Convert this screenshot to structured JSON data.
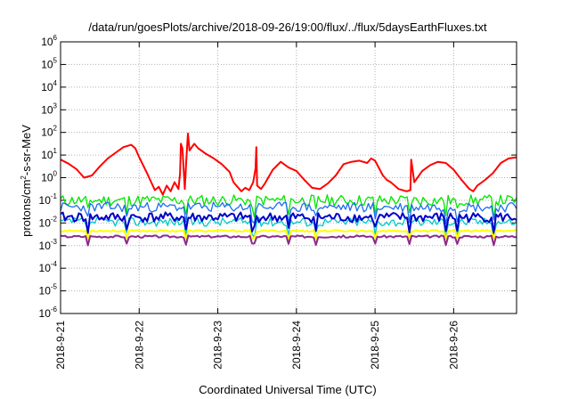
{
  "chart_data": {
    "type": "line",
    "title": "/data/run/goesPlots/archive/2018-09-26/19:00/flux/../flux/5daysEarthFluxes.txt",
    "xlabel": "Coordinated Universal Time (UTC)",
    "ylabel": {
      "base": "protons/cm",
      "sup": "2",
      "rest": "-s-sr-MeV"
    },
    "xlim": [
      0,
      5.8
    ],
    "xlim_note": "days after 2018-09-21 00:00 UTC",
    "x_ticks": [
      {
        "v": 0,
        "label": "2018-9-21"
      },
      {
        "v": 1,
        "label": "2018-9-22"
      },
      {
        "v": 2,
        "label": "2018-9-23"
      },
      {
        "v": 3,
        "label": "2018-9-24"
      },
      {
        "v": 4,
        "label": "2018-9-25"
      },
      {
        "v": 5,
        "label": "2018-9-26"
      }
    ],
    "y_scale": "log",
    "ylim_exp": [
      -6,
      6
    ],
    "y_ticks": [
      {
        "v": 6,
        "base": "10",
        "exp": "6"
      },
      {
        "v": 5,
        "base": "10",
        "exp": "5"
      },
      {
        "v": 4,
        "base": "10",
        "exp": "4"
      },
      {
        "v": 3,
        "base": "10",
        "exp": "3"
      },
      {
        "v": 2,
        "base": "10",
        "exp": "2"
      },
      {
        "v": 1,
        "base": "10",
        "exp": "1"
      },
      {
        "v": 0,
        "base": "10",
        "exp": "0"
      },
      {
        "v": -1,
        "base": "10",
        "exp": "-1"
      },
      {
        "v": -2,
        "base": "10",
        "exp": "-2"
      },
      {
        "v": -3,
        "base": "10",
        "exp": "-3"
      },
      {
        "v": -4,
        "base": "10",
        "exp": "-4"
      },
      {
        "v": -5,
        "base": "10",
        "exp": "-5"
      },
      {
        "v": -6,
        "base": "10",
        "exp": "-6"
      }
    ],
    "grid": true,
    "series": [
      {
        "color": "#ff0000",
        "width": 2,
        "style": "smooth",
        "points": [
          [
            0,
            0.8
          ],
          [
            0.1,
            0.62
          ],
          [
            0.2,
            0.38
          ],
          [
            0.3,
            0.0
          ],
          [
            0.4,
            0.1
          ],
          [
            0.5,
            0.5
          ],
          [
            0.6,
            0.85
          ],
          [
            0.7,
            1.1
          ],
          [
            0.8,
            1.35
          ],
          [
            0.9,
            1.45
          ],
          [
            0.95,
            1.3
          ],
          [
            1.0,
            0.9
          ],
          [
            1.1,
            0.2
          ],
          [
            1.2,
            -0.55
          ],
          [
            1.25,
            -0.4
          ],
          [
            1.3,
            -0.75
          ],
          [
            1.35,
            -0.35
          ],
          [
            1.4,
            -0.6
          ],
          [
            1.45,
            -0.2
          ],
          [
            1.5,
            -0.5
          ],
          [
            1.52,
            0.2
          ],
          [
            1.53,
            1.5
          ],
          [
            1.55,
            1.3
          ],
          [
            1.57,
            0.1
          ],
          [
            1.58,
            -0.5
          ],
          [
            1.6,
            0.8
          ],
          [
            1.62,
            1.95
          ],
          [
            1.64,
            1.2
          ],
          [
            1.7,
            1.5
          ],
          [
            1.75,
            1.3
          ],
          [
            1.85,
            1.05
          ],
          [
            1.95,
            0.85
          ],
          [
            2.05,
            0.6
          ],
          [
            2.15,
            0.25
          ],
          [
            2.2,
            -0.2
          ],
          [
            2.3,
            -0.6
          ],
          [
            2.35,
            -0.45
          ],
          [
            2.4,
            -0.55
          ],
          [
            2.45,
            -0.2
          ],
          [
            2.48,
            0.4
          ],
          [
            2.49,
            1.35
          ],
          [
            2.5,
            -0.35
          ],
          [
            2.55,
            -0.5
          ],
          [
            2.6,
            -0.25
          ],
          [
            2.7,
            0.35
          ],
          [
            2.8,
            0.7
          ],
          [
            2.9,
            0.45
          ],
          [
            3.0,
            0.3
          ],
          [
            3.1,
            -0.1
          ],
          [
            3.2,
            -0.45
          ],
          [
            3.3,
            -0.5
          ],
          [
            3.4,
            -0.25
          ],
          [
            3.5,
            0.1
          ],
          [
            3.6,
            0.6
          ],
          [
            3.7,
            0.7
          ],
          [
            3.8,
            0.75
          ],
          [
            3.9,
            0.65
          ],
          [
            3.95,
            0.85
          ],
          [
            4.0,
            0.75
          ],
          [
            4.1,
            0.1
          ],
          [
            4.15,
            -0.1
          ],
          [
            4.2,
            -0.2
          ],
          [
            4.3,
            -0.5
          ],
          [
            4.4,
            -0.6
          ],
          [
            4.45,
            -0.55
          ],
          [
            4.46,
            0.8
          ],
          [
            4.47,
            0.55
          ],
          [
            4.5,
            -0.2
          ],
          [
            4.6,
            0.3
          ],
          [
            4.7,
            0.55
          ],
          [
            4.8,
            0.7
          ],
          [
            4.9,
            0.65
          ],
          [
            5.0,
            0.35
          ],
          [
            5.1,
            -0.1
          ],
          [
            5.2,
            -0.5
          ],
          [
            5.25,
            -0.6
          ],
          [
            5.3,
            -0.35
          ],
          [
            5.4,
            -0.1
          ],
          [
            5.5,
            0.2
          ],
          [
            5.6,
            0.65
          ],
          [
            5.7,
            0.85
          ],
          [
            5.8,
            0.9
          ]
        ]
      },
      {
        "color": "#00e600",
        "width": 1.3,
        "style": "noisy",
        "level": -1.0,
        "amp": 0.25,
        "seed": 11
      },
      {
        "color": "#1e6cf0",
        "width": 1.3,
        "style": "noisy",
        "level": -1.3,
        "amp": 0.22,
        "seed": 23
      },
      {
        "color": "#00c8c8",
        "width": 1.3,
        "style": "noisy",
        "level": -1.95,
        "amp": 0.2,
        "seed": 37
      },
      {
        "color": "#0000c8",
        "width": 2,
        "style": "noisy",
        "level": -1.75,
        "amp": 0.22,
        "seed": 41
      },
      {
        "color": "#ffff00",
        "width": 2,
        "style": "noisy",
        "level": -2.35,
        "amp": 0.04,
        "seed": 53
      },
      {
        "color": "#8b2a8b",
        "width": 2,
        "style": "noisy",
        "level": -2.6,
        "amp": 0.05,
        "seed": 67
      }
    ],
    "dips": [
      0.35,
      0.85,
      1.6,
      2.45,
      2.9,
      3.25,
      4.0,
      4.45,
      4.9,
      5.05,
      5.5
    ]
  }
}
